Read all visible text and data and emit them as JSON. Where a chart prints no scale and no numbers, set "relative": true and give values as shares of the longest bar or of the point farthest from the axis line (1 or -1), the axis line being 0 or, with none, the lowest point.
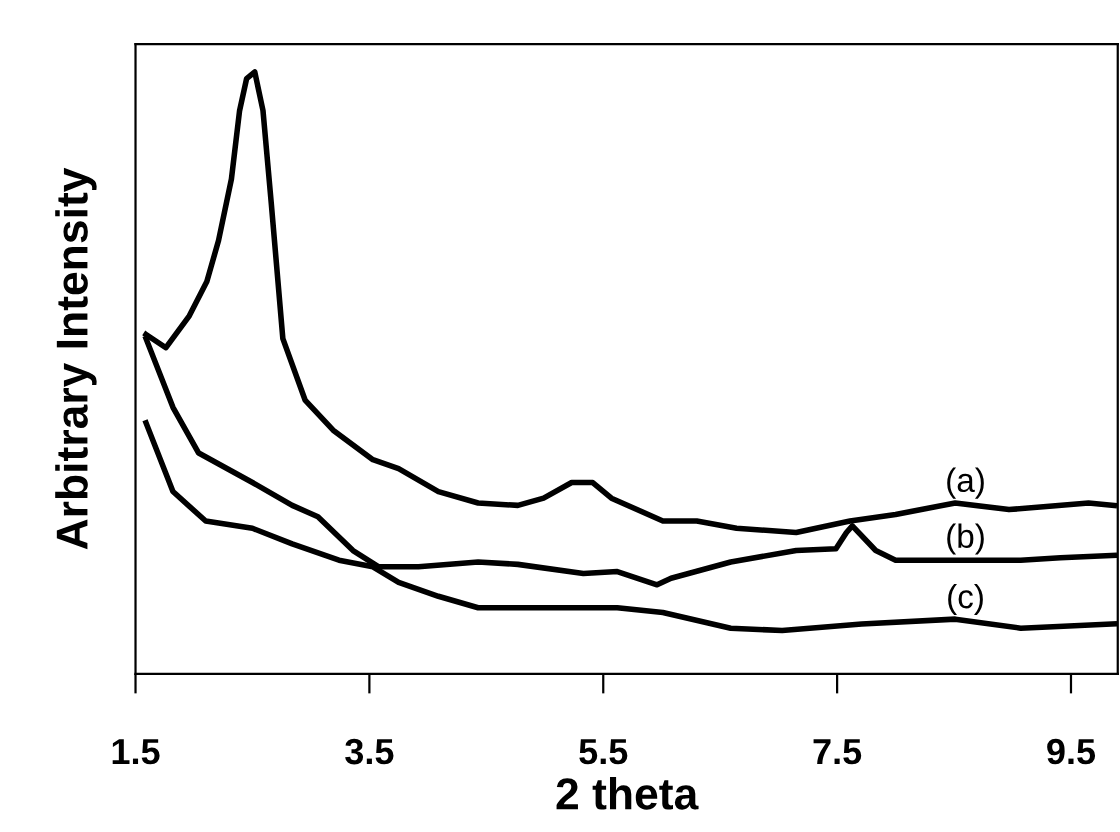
{
  "chart_data": {
    "type": "line",
    "relative": true,
    "xlabel": "2 theta",
    "ylabel": "Arbitrary Intensity",
    "xlim": [
      1.5,
      9.9
    ],
    "xticks": [
      1.5,
      3.5,
      5.5,
      7.5,
      9.5
    ],
    "grid": false,
    "legend": false,
    "marker": "none",
    "line_style": "solid",
    "series": [
      {
        "name": "(a)",
        "color": "#000000",
        "x": [
          1.59,
          1.76,
          1.96,
          2.11,
          2.21,
          2.32,
          2.39,
          2.45,
          2.52,
          2.59,
          2.66,
          2.76,
          2.95,
          3.19,
          3.53,
          3.75,
          4.09,
          4.43,
          4.77,
          4.99,
          5.23,
          5.41,
          5.57,
          6.01,
          6.3,
          6.64,
          7.15,
          7.61,
          8.0,
          8.51,
          8.97,
          9.65,
          9.87
        ],
        "values": [
          0.564,
          0.542,
          0.595,
          0.652,
          0.72,
          0.822,
          0.936,
          0.989,
          1,
          0.936,
          0.784,
          0.557,
          0.455,
          0.405,
          0.356,
          0.341,
          0.303,
          0.284,
          0.28,
          0.292,
          0.318,
          0.318,
          0.292,
          0.254,
          0.254,
          0.242,
          0.235,
          0.254,
          0.265,
          0.284,
          0.273,
          0.284,
          0.28
        ]
      },
      {
        "name": "(b)",
        "color": "#000000",
        "x": [
          1.59,
          1.82,
          2.04,
          2.5,
          2.84,
          3.06,
          3.36,
          3.58,
          3.92,
          4.43,
          4.77,
          5.33,
          5.62,
          5.96,
          6.08,
          6.59,
          7.15,
          7.49,
          7.58,
          7.63,
          7.83,
          8.0,
          8.51,
          9.07,
          9.41,
          9.87
        ],
        "values": [
          0.557,
          0.443,
          0.367,
          0.318,
          0.28,
          0.261,
          0.205,
          0.178,
          0.178,
          0.186,
          0.182,
          0.167,
          0.17,
          0.148,
          0.159,
          0.186,
          0.205,
          0.208,
          0.235,
          0.246,
          0.205,
          0.189,
          0.189,
          0.189,
          0.193,
          0.197
        ]
      },
      {
        "name": "(c)",
        "color": "#000000",
        "x": [
          1.59,
          1.82,
          2.1,
          2.5,
          2.84,
          3.24,
          3.53,
          3.75,
          4.09,
          4.43,
          4.89,
          5.62,
          6.01,
          6.59,
          7.03,
          7.71,
          8.51,
          9.07,
          9.87
        ],
        "values": [
          0.417,
          0.303,
          0.254,
          0.242,
          0.216,
          0.189,
          0.178,
          0.152,
          0.129,
          0.11,
          0.11,
          0.11,
          0.102,
          0.076,
          0.072,
          0.083,
          0.091,
          0.076,
          0.083
        ]
      }
    ]
  }
}
